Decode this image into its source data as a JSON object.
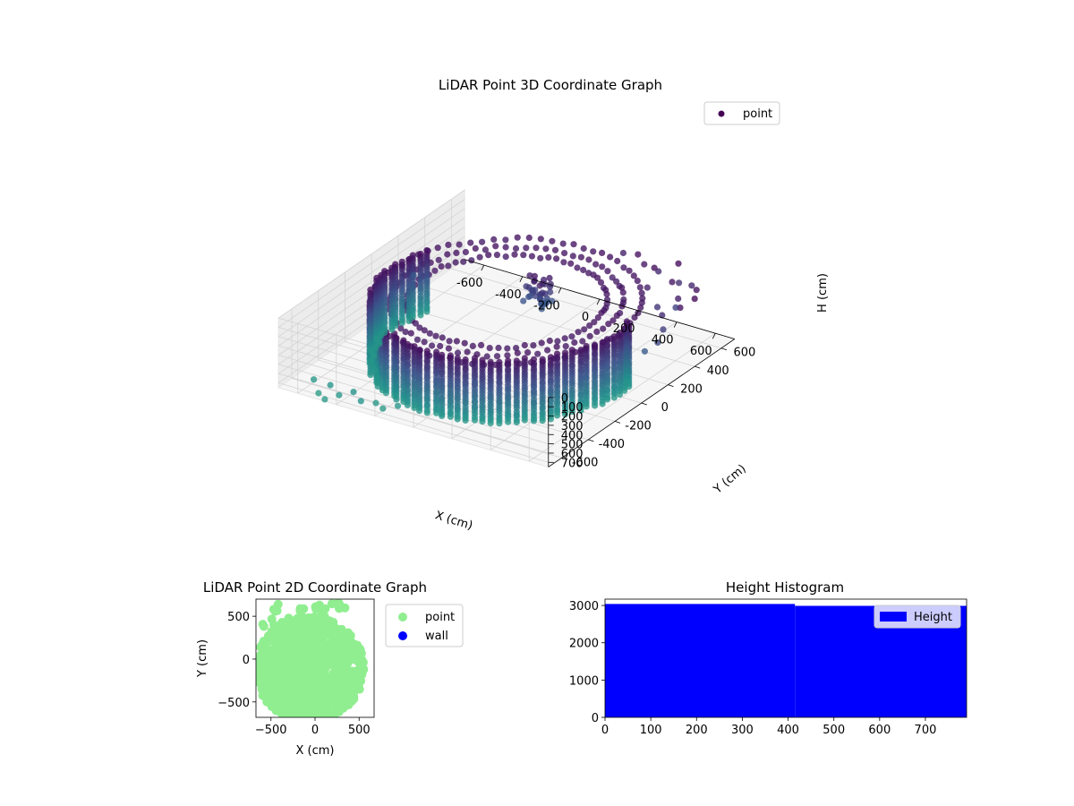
{
  "chart_data": [
    {
      "type": "scatter",
      "projection": "3d",
      "title": "LiDAR Point 3D Coordinate Graph",
      "xlabel": "X (cm)",
      "ylabel": "Y (cm)",
      "zlabel": "H (cm)",
      "xlim": [
        -700,
        700
      ],
      "ylim": [
        -700,
        700
      ],
      "zlim": [
        750,
        0
      ],
      "xticks": [
        "-600",
        "-400",
        "-200",
        "0",
        "200",
        "400",
        "600"
      ],
      "yticks": [
        "-600",
        "-400",
        "-200",
        "0",
        "200",
        "400",
        "600"
      ],
      "zticks": [
        "0",
        "100",
        "200",
        "300",
        "400",
        "500",
        "600",
        "700"
      ],
      "legend": [
        "point"
      ],
      "legend_location": "top-right",
      "colormap": "viridis",
      "grid": true,
      "structure": {
        "wall_radius": 580,
        "wall_arc_degrees": [
          -10,
          200
        ],
        "wall_height_range": [
          50,
          720
        ],
        "cap_rings": 3
      },
      "outliers": [
        [
          420,
          450,
          120
        ],
        [
          500,
          520,
          80
        ],
        [
          560,
          580,
          140
        ],
        [
          600,
          420,
          100
        ],
        [
          640,
          500,
          60
        ],
        [
          380,
          560,
          40
        ],
        [
          300,
          600,
          90
        ],
        [
          450,
          640,
          30
        ],
        [
          520,
          380,
          200
        ],
        [
          600,
          300,
          160
        ],
        [
          640,
          250,
          240
        ],
        [
          660,
          180,
          300
        ],
        [
          620,
          140,
          380
        ],
        [
          680,
          320,
          50
        ],
        [
          560,
          460,
          260
        ],
        [
          480,
          600,
          180
        ],
        [
          360,
          620,
          150
        ],
        [
          240,
          640,
          60
        ],
        [
          150,
          660,
          120
        ],
        [
          700,
          400,
          20
        ],
        [
          -620,
          200,
          380
        ],
        [
          -500,
          -600,
          700
        ],
        [
          -600,
          -580,
          720
        ],
        [
          -420,
          -650,
          710
        ],
        [
          -300,
          -660,
          690
        ],
        [
          -200,
          -640,
          730
        ],
        [
          -520,
          -660,
          740
        ],
        [
          -380,
          -600,
          700
        ],
        [
          -250,
          -620,
          720
        ],
        [
          -150,
          -600,
          710
        ],
        [
          -460,
          -700,
          730
        ]
      ]
    },
    {
      "type": "scatter",
      "title": "LiDAR Point 2D Coordinate Graph",
      "xlabel": "X (cm)",
      "ylabel": "Y (cm)",
      "xlim": [
        -670,
        670
      ],
      "ylim": [
        -680,
        700
      ],
      "xticks": [
        -500,
        0,
        500
      ],
      "yticks": [
        -500,
        0,
        500
      ],
      "series": [
        {
          "name": "point",
          "color": "#90ee90"
        },
        {
          "name": "wall",
          "color": "#0000ff"
        }
      ],
      "legend_location": "outside-right"
    },
    {
      "type": "bar",
      "title": "Height Histogram",
      "xlim": [
        0,
        790
      ],
      "ylim": [
        0,
        3170
      ],
      "xticks": [
        0,
        100,
        200,
        300,
        400,
        500,
        600,
        700
      ],
      "yticks": [
        0,
        1000,
        2000,
        3000
      ],
      "bins": [
        {
          "x0": 0,
          "x1": 415,
          "value": 3040
        },
        {
          "x0": 415,
          "x1": 790,
          "value": 2990
        }
      ],
      "color": "#0000ff",
      "legend": [
        "Height"
      ],
      "legend_location": "top-right"
    }
  ]
}
